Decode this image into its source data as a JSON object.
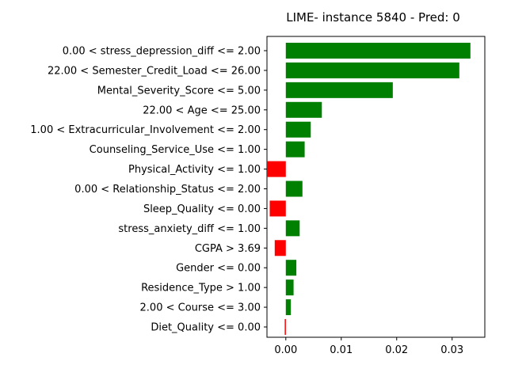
{
  "chart_data": {
    "type": "bar",
    "orientation": "horizontal",
    "title": "LIME- instance 5840 - Pred: 0",
    "xlabel": "",
    "ylabel": "",
    "xlim": [
      -0.0034,
      0.0359
    ],
    "xticks": [
      0.0,
      0.01,
      0.02,
      0.03
    ],
    "xtick_labels": [
      "0.00",
      "0.01",
      "0.02",
      "0.03"
    ],
    "grid": false,
    "colors": {
      "positive": "#008000",
      "negative": "#ff0000"
    },
    "categories": [
      "0.00 < stress_depression_diff <= 2.00",
      "22.00 < Semester_Credit_Load <= 26.00",
      "Mental_Severity_Score <= 5.00",
      "22.00 < Age <= 25.00",
      "1.00 < Extracurricular_Involvement <= 2.00",
      "Counseling_Service_Use <= 1.00",
      "Physical_Activity <= 1.00",
      "0.00 < Relationship_Status <= 2.00",
      "Sleep_Quality <= 0.00",
      "stress_anxiety_diff <= 1.00",
      "CGPA > 3.69",
      "Gender <= 0.00",
      "Residence_Type > 1.00",
      "2.00 < Course <= 3.00",
      "Diet_Quality <= 0.00"
    ],
    "values": [
      0.0333,
      0.0313,
      0.0193,
      0.0065,
      0.0045,
      0.0034,
      -0.0033,
      0.003,
      -0.0029,
      0.0025,
      -0.002,
      0.0019,
      0.0014,
      0.0009,
      -0.0002
    ]
  }
}
